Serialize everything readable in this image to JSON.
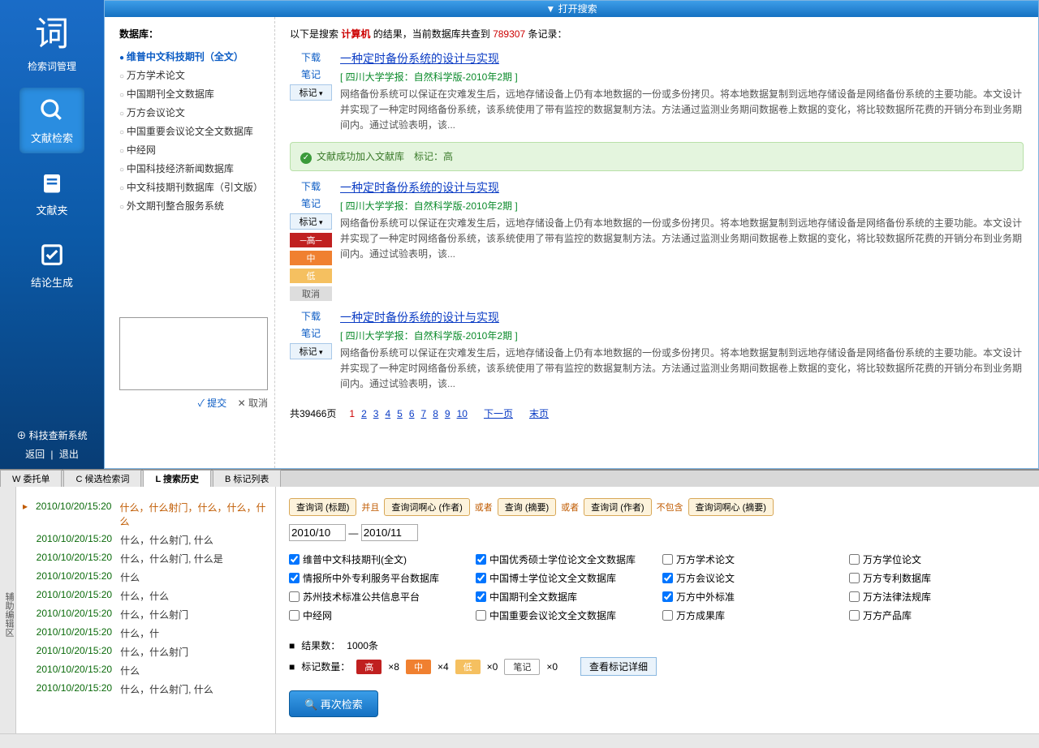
{
  "sidebar": {
    "logo": "词",
    "logo_sub": "检索词管理",
    "items": [
      {
        "label": "文献检索"
      },
      {
        "label": "文献夹"
      },
      {
        "label": "结论生成"
      }
    ],
    "system": "科技查新系统",
    "back": "返回",
    "exit": "退出"
  },
  "topbar": "▼ 打开搜索",
  "db": {
    "title": "数据库：",
    "list": [
      "维普中文科技期刊（全文）",
      "万方学术论文",
      "中国期刊全文数据库",
      "万方会议论文",
      "中国重要会议论文全文数据库",
      "中经网",
      "中国科技经济新闻数据库",
      "中文科技期刊数据库（引文版）",
      "外文期刊整合服务系统"
    ],
    "selected": 0,
    "note_submit": "✓ 提交",
    "note_cancel": "✕ 取消"
  },
  "results": {
    "head_pre": "以下是搜索",
    "keyword": "计算机",
    "head_mid": "的结果，当前数据库共查到",
    "count": "789307",
    "head_post": "条记录：",
    "dl": "下载",
    "note": "笔记",
    "tag": "标记",
    "tag_high": "─高─",
    "tag_mid": "中",
    "tag_low": "低",
    "tag_cancel": "取消",
    "success": "文献成功加入文献库　标记：高",
    "items": [
      {
        "title": "一种定时备份系统的设计与实现",
        "source": "[ 四川大学学报：自然科学版-2010年2期 ]",
        "abs": "网络备份系统可以保证在灾难发生后，远地存储设备上仍有本地数据的一份或多份拷贝。将本地数据复制到远地存储设备是网络备份系统的主要功能。本文设计并实现了一种定时网络备份系统，该系统使用了带有监控的数据复制方法。方法通过监测业务期间数据卷上数据的变化，将比较数据所花费的开销分布到业务期间内。通过试验表明，该..."
      },
      {
        "title": "一种定时备份系统的设计与实现",
        "source": "[ 四川大学学报：自然科学版-2010年2期 ]",
        "abs": "网络备份系统可以保证在灾难发生后，远地存储设备上仍有本地数据的一份或多份拷贝。将本地数据复制到远地存储设备是网络备份系统的主要功能。本文设计并实现了一种定时网络备份系统，该系统使用了带有监控的数据复制方法。方法通过监测业务期间数据卷上数据的变化，将比较数据所花费的开销分布到业务期间内。通过试验表明，该..."
      },
      {
        "title": "一种定时备份系统的设计与实现",
        "source": "[ 四川大学学报：自然科学版-2010年2期 ]",
        "abs": "网络备份系统可以保证在灾难发生后，远地存储设备上仍有本地数据的一份或多份拷贝。将本地数据复制到远地存储设备是网络备份系统的主要功能。本文设计并实现了一种定时网络备份系统，该系统使用了带有监控的数据复制方法。方法通过监测业务期间数据卷上数据的变化，将比较数据所花费的开销分布到业务期间内。通过试验表明，该..."
      }
    ],
    "pager_total": "共39466页",
    "pages": [
      "1",
      "2",
      "3",
      "4",
      "5",
      "6",
      "7",
      "8",
      "9",
      "10"
    ],
    "next": "下一页",
    "last": "末页"
  },
  "tabs": [
    "W 委托单",
    "C 候选检索词",
    "L 搜索历史",
    "B 标记列表"
  ],
  "active_tab": 2,
  "aux_label": "辅助编辑区",
  "history": [
    {
      "ts": "2010/10/20/15:20",
      "q": "什么，什么射门，什么，什么，什么",
      "sel": true
    },
    {
      "ts": "2010/10/20/15:20",
      "q": "什么，什么射门, 什么"
    },
    {
      "ts": "2010/10/20/15:20",
      "q": "什么，什么射门, 什么是"
    },
    {
      "ts": "2010/10/20/15:20",
      "q": "什么"
    },
    {
      "ts": "2010/10/20/15:20",
      "q": "什么，什么"
    },
    {
      "ts": "2010/10/20/15:20",
      "q": "什么，什么射门"
    },
    {
      "ts": "2010/10/20/15:20",
      "q": "什么，什"
    },
    {
      "ts": "2010/10/20/15:20",
      "q": "什么，什么射门"
    },
    {
      "ts": "2010/10/20/15:20",
      "q": "什么"
    },
    {
      "ts": "2010/10/20/15:20",
      "q": "什么，什么射门, 什么"
    }
  ],
  "detail": {
    "chips": [
      {
        "t": "查询词 (标题)"
      },
      {
        "op": "并且"
      },
      {
        "t": "查询词啊心 (作者)"
      },
      {
        "op": "或者"
      },
      {
        "t": "查询 (摘要)"
      },
      {
        "op": "或者"
      },
      {
        "t": "查询词 (作者)"
      },
      {
        "op": "不包含"
      },
      {
        "t": "查询词啊心 (摘要)"
      }
    ],
    "date_from": "2010/10",
    "date_sep": "—",
    "date_to": "2010/11",
    "dbs": [
      {
        "l": "维普中文科技期刊(全文)",
        "c": true
      },
      {
        "l": "中国优秀硕士学位论文全文数据库",
        "c": true
      },
      {
        "l": "万方学术论文",
        "c": false
      },
      {
        "l": "万方学位论文",
        "c": false
      },
      {
        "l": "情报所中外专利服务平台数据库",
        "c": true
      },
      {
        "l": "中国博士学位论文全文数据库",
        "c": true
      },
      {
        "l": "万方会议论文",
        "c": true
      },
      {
        "l": "万方专利数据库",
        "c": false
      },
      {
        "l": "苏州技术标准公共信息平台",
        "c": false
      },
      {
        "l": "中国期刊全文数据库",
        "c": true
      },
      {
        "l": "万方中外标准",
        "c": true
      },
      {
        "l": "万方法律法规库",
        "c": false
      },
      {
        "l": "中经网",
        "c": false
      },
      {
        "l": "中国重要会议论文全文数据库",
        "c": false
      },
      {
        "l": "万方成果库",
        "c": false
      },
      {
        "l": "万方产品库",
        "c": false
      }
    ],
    "result_label": "结果数：",
    "result_count": "1000条",
    "tag_label": "标记数量：",
    "high_n": "×8",
    "mid_n": "×4",
    "low_n": "×0",
    "note_n": "×0",
    "high_t": "高",
    "mid_t": "中",
    "low_t": "低",
    "note_t": "笔记",
    "view_detail": "查看标记详细",
    "research": "🔍 再次检索"
  }
}
